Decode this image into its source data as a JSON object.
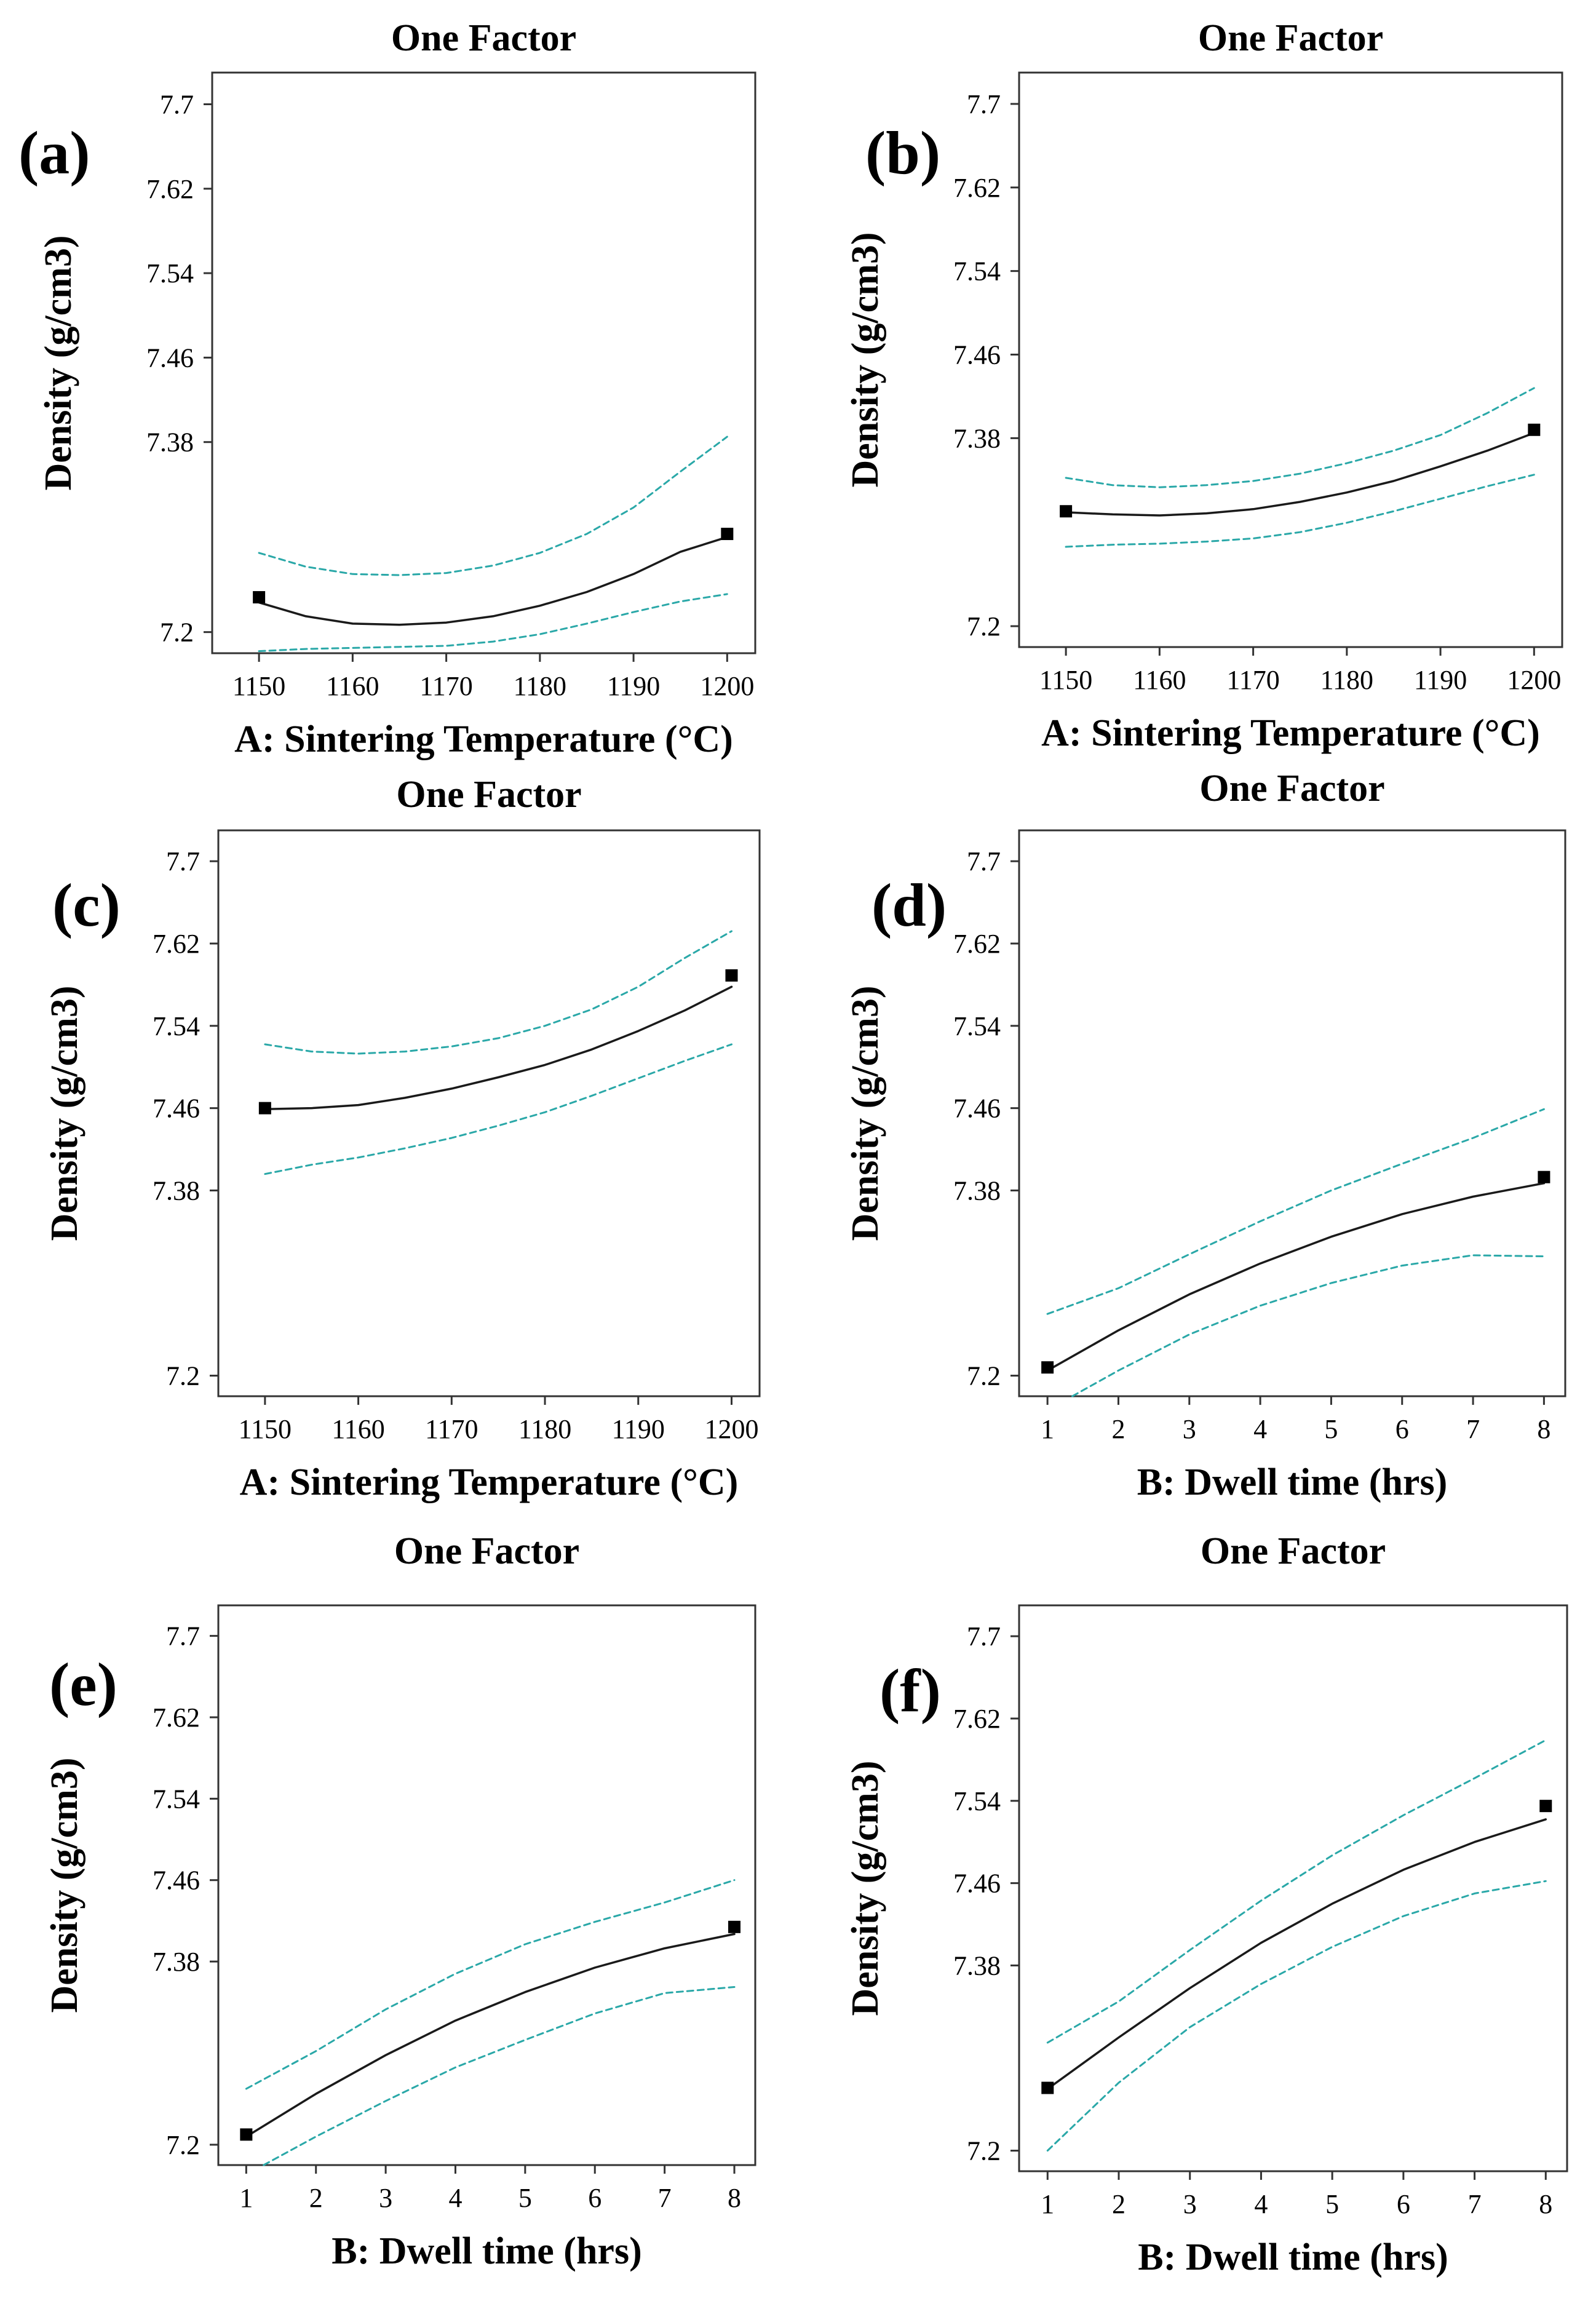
{
  "figure": {
    "description_none": true
  },
  "colors": {
    "fit_line": "#1a1a1a",
    "ci_band": "#2aa8a8",
    "marker": "#000000",
    "frame": "#333333"
  },
  "chart_data": [
    {
      "type": "line",
      "panel": "(a)",
      "title": "One Factor",
      "xlabel": "A: Sintering Temperature (°C)",
      "ylabel": "Density (g/cm3)",
      "xlim": [
        1145,
        1203
      ],
      "ylim": [
        7.18,
        7.73
      ],
      "x_ticks": [
        1150,
        1160,
        1170,
        1180,
        1190,
        1200
      ],
      "y_ticks": [
        7.2,
        7.38,
        7.46,
        7.54,
        7.62,
        7.7
      ],
      "y_tick_labels": [
        "7.2",
        "7.38",
        "7.46",
        "7.54",
        "7.62",
        "7.7"
      ],
      "series": [
        {
          "name": "Predicted",
          "x": [
            1150,
            1155,
            1160,
            1165,
            1170,
            1175,
            1180,
            1185,
            1190,
            1195,
            1200
          ],
          "y": [
            7.228,
            7.215,
            7.208,
            7.207,
            7.209,
            7.215,
            7.225,
            7.238,
            7.255,
            7.276,
            7.29
          ]
        },
        {
          "name": "95% CI upper",
          "x": [
            1150,
            1155,
            1160,
            1165,
            1170,
            1175,
            1180,
            1185,
            1190,
            1195,
            1200
          ],
          "y": [
            7.275,
            7.262,
            7.255,
            7.254,
            7.256,
            7.263,
            7.275,
            7.293,
            7.318,
            7.352,
            7.385
          ]
        },
        {
          "name": "95% CI lower",
          "x": [
            1150,
            1155,
            1160,
            1165,
            1170,
            1175,
            1180,
            1185,
            1190,
            1195,
            1200
          ],
          "y": [
            7.182,
            7.184,
            7.185,
            7.186,
            7.187,
            7.191,
            7.198,
            7.208,
            7.219,
            7.229,
            7.236
          ]
        }
      ],
      "design_points": {
        "x": [
          1150,
          1200
        ],
        "y": [
          7.233,
          7.293
        ]
      }
    },
    {
      "type": "line",
      "panel": "(b)",
      "title": "One Factor",
      "xlabel": "A: Sintering Temperature (°C)",
      "ylabel": "Density (g/cm3)",
      "xlim": [
        1145,
        1203
      ],
      "ylim": [
        7.18,
        7.73
      ],
      "x_ticks": [
        1150,
        1160,
        1170,
        1180,
        1190,
        1200
      ],
      "y_ticks": [
        7.2,
        7.38,
        7.46,
        7.54,
        7.62,
        7.7
      ],
      "y_tick_labels": [
        "7.2",
        "7.38",
        "7.46",
        "7.54",
        "7.62",
        "7.7"
      ],
      "series": [
        {
          "name": "Predicted",
          "x": [
            1150,
            1155,
            1160,
            1165,
            1170,
            1175,
            1180,
            1185,
            1190,
            1195,
            1200
          ],
          "y": [
            7.309,
            7.307,
            7.306,
            7.308,
            7.312,
            7.319,
            7.328,
            7.339,
            7.353,
            7.368,
            7.385
          ]
        },
        {
          "name": "95% CI upper",
          "x": [
            1150,
            1155,
            1160,
            1165,
            1170,
            1175,
            1180,
            1185,
            1190,
            1195,
            1200
          ],
          "y": [
            7.342,
            7.335,
            7.333,
            7.335,
            7.339,
            7.346,
            7.356,
            7.368,
            7.383,
            7.404,
            7.428
          ]
        },
        {
          "name": "95% CI lower",
          "x": [
            1150,
            1155,
            1160,
            1165,
            1170,
            1175,
            1180,
            1185,
            1190,
            1195,
            1200
          ],
          "y": [
            7.276,
            7.278,
            7.279,
            7.281,
            7.284,
            7.29,
            7.299,
            7.31,
            7.322,
            7.334,
            7.345
          ]
        }
      ],
      "design_points": {
        "x": [
          1150,
          1200
        ],
        "y": [
          7.31,
          7.388
        ]
      }
    },
    {
      "type": "line",
      "panel": "(c)",
      "title": "One Factor",
      "xlabel": "A: Sintering Temperature (°C)",
      "ylabel": "Density (g/cm3)",
      "xlim": [
        1145,
        1203
      ],
      "ylim": [
        7.18,
        7.73
      ],
      "x_ticks": [
        1150,
        1160,
        1170,
        1180,
        1190,
        1200
      ],
      "y_ticks": [
        7.2,
        7.38,
        7.46,
        7.54,
        7.62,
        7.7
      ],
      "y_tick_labels": [
        "7.2",
        "7.38",
        "7.46",
        "7.54",
        "7.62",
        "7.7"
      ],
      "series": [
        {
          "name": "Predicted",
          "x": [
            1150,
            1155,
            1160,
            1165,
            1170,
            1175,
            1180,
            1185,
            1190,
            1195,
            1200
          ],
          "y": [
            7.459,
            7.46,
            7.463,
            7.47,
            7.479,
            7.49,
            7.502,
            7.517,
            7.535,
            7.555,
            7.578
          ]
        },
        {
          "name": "95% CI upper",
          "x": [
            1150,
            1155,
            1160,
            1165,
            1170,
            1175,
            1180,
            1185,
            1190,
            1195,
            1200
          ],
          "y": [
            7.522,
            7.515,
            7.513,
            7.515,
            7.52,
            7.528,
            7.54,
            7.556,
            7.578,
            7.606,
            7.632
          ]
        },
        {
          "name": "95% CI lower",
          "x": [
            1150,
            1155,
            1160,
            1165,
            1170,
            1175,
            1180,
            1185,
            1190,
            1195,
            1200
          ],
          "y": [
            7.396,
            7.405,
            7.412,
            7.421,
            7.431,
            7.443,
            7.456,
            7.472,
            7.489,
            7.506,
            7.522
          ]
        }
      ],
      "design_points": {
        "x": [
          1150,
          1200
        ],
        "y": [
          7.46,
          7.589
        ]
      }
    },
    {
      "type": "line",
      "panel": "(d)",
      "title": "One Factor",
      "xlabel": "B: Dwell time (hrs)",
      "ylabel": "Density (g/cm3)",
      "xlim": [
        0.6,
        8.3
      ],
      "ylim": [
        7.18,
        7.73
      ],
      "x_ticks": [
        1,
        2,
        3,
        4,
        5,
        6,
        7,
        8
      ],
      "y_ticks": [
        7.2,
        7.38,
        7.46,
        7.54,
        7.62,
        7.7
      ],
      "y_tick_labels": [
        "7.2",
        "7.38",
        "7.46",
        "7.54",
        "7.62",
        "7.7"
      ],
      "series": [
        {
          "name": "Predicted",
          "x": [
            1,
            2,
            3,
            4,
            5,
            6,
            7,
            8
          ],
          "y": [
            7.205,
            7.244,
            7.279,
            7.309,
            7.335,
            7.357,
            7.374,
            7.387
          ]
        },
        {
          "name": "95% CI upper",
          "x": [
            1,
            2,
            3,
            4,
            5,
            6,
            7,
            8
          ],
          "y": [
            7.26,
            7.285,
            7.318,
            7.35,
            7.38,
            7.406,
            7.431,
            7.459
          ]
        },
        {
          "name": "95% CI lower",
          "x": [
            1.35,
            2,
            3,
            4,
            5,
            6,
            7,
            8
          ],
          "y": [
            7.18,
            7.205,
            7.24,
            7.268,
            7.29,
            7.307,
            7.317,
            7.316
          ]
        }
      ],
      "design_points": {
        "x": [
          1,
          8
        ],
        "y": [
          7.208,
          7.393
        ]
      }
    },
    {
      "type": "line",
      "panel": "(e)",
      "title": "One Factor",
      "xlabel": "B: Dwell time (hrs)",
      "ylabel": "Density (g/cm3)",
      "xlim": [
        0.6,
        8.3
      ],
      "ylim": [
        7.18,
        7.73
      ],
      "x_ticks": [
        1,
        2,
        3,
        4,
        5,
        6,
        7,
        8
      ],
      "y_ticks": [
        7.2,
        7.38,
        7.46,
        7.54,
        7.62,
        7.7
      ],
      "y_tick_labels": [
        "7.2",
        "7.38",
        "7.46",
        "7.54",
        "7.62",
        "7.7"
      ],
      "series": [
        {
          "name": "Predicted",
          "x": [
            1,
            2,
            3,
            4,
            5,
            6,
            7,
            8
          ],
          "y": [
            7.208,
            7.25,
            7.288,
            7.322,
            7.35,
            7.374,
            7.393,
            7.407
          ]
        },
        {
          "name": "95% CI upper",
          "x": [
            1,
            2,
            3,
            4,
            5,
            6,
            7,
            8
          ],
          "y": [
            7.255,
            7.292,
            7.333,
            7.368,
            7.397,
            7.419,
            7.438,
            7.46
          ]
        },
        {
          "name": "95% CI lower",
          "x": [
            1.25,
            2,
            3,
            4,
            5,
            6,
            7,
            8
          ],
          "y": [
            7.18,
            7.208,
            7.243,
            7.276,
            7.303,
            7.329,
            7.349,
            7.355
          ]
        }
      ],
      "design_points": {
        "x": [
          1,
          8
        ],
        "y": [
          7.21,
          7.414
        ]
      }
    },
    {
      "type": "line",
      "panel": "(f)",
      "title": "One Factor",
      "xlabel": "B: Dwell time (hrs)",
      "ylabel": "Density (g/cm3)",
      "xlim": [
        0.6,
        8.3
      ],
      "ylim": [
        7.18,
        7.73
      ],
      "x_ticks": [
        1,
        2,
        3,
        4,
        5,
        6,
        7,
        8
      ],
      "y_ticks": [
        7.2,
        7.38,
        7.46,
        7.54,
        7.62,
        7.7
      ],
      "y_tick_labels": [
        "7.2",
        "7.38",
        "7.46",
        "7.54",
        "7.62",
        "7.7"
      ],
      "series": [
        {
          "name": "Predicted",
          "x": [
            1,
            2,
            3,
            4,
            5,
            6,
            7,
            8
          ],
          "y": [
            7.26,
            7.31,
            7.358,
            7.402,
            7.44,
            7.473,
            7.5,
            7.522
          ]
        },
        {
          "name": "95% CI upper",
          "x": [
            1,
            2,
            3,
            4,
            5,
            6,
            7,
            8
          ],
          "y": [
            7.305,
            7.345,
            7.395,
            7.443,
            7.487,
            7.526,
            7.562,
            7.599
          ]
        },
        {
          "name": "95% CI lower",
          "x": [
            1,
            2,
            3,
            4,
            5,
            6,
            7,
            8
          ],
          "y": [
            7.2,
            7.266,
            7.32,
            7.362,
            7.398,
            7.428,
            7.45,
            7.462
          ]
        }
      ],
      "design_points": {
        "x": [
          1,
          8
        ],
        "y": [
          7.261,
          7.535
        ]
      }
    }
  ]
}
